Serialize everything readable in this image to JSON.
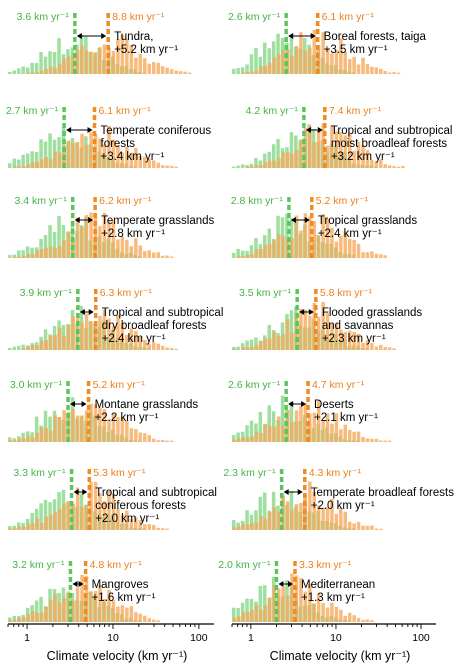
{
  "colors": {
    "green": "#5cc65c",
    "green_bar": "#7fd47f",
    "orange": "#f08a24",
    "orange_bar": "#f6a85a",
    "green_text": "#44b444",
    "orange_text": "#ee7f1a"
  },
  "chart_data": {
    "type": "bar",
    "xscale": "log",
    "xlim": [
      0.6,
      150
    ],
    "xticks": [
      {
        "value": 1,
        "label": "1"
      },
      {
        "value": 10,
        "label": "10"
      },
      {
        "value": 100,
        "label": "100"
      }
    ],
    "xlabel": "Climate velocity (km yr⁻¹)",
    "panels": [
      {
        "col": 0,
        "row": 0,
        "biome": "Tundra,",
        "delta": "+5.2 km yr⁻¹",
        "past": 3.6,
        "past_label": "3.6 km yr⁻¹",
        "future": 8.8,
        "future_label": "8.8 km yr⁻¹"
      },
      {
        "col": 1,
        "row": 0,
        "biome": "Boreal forests, taiga",
        "delta": "+3.5 km yr⁻¹",
        "past": 2.6,
        "past_label": "2.6 km yr⁻¹",
        "future": 6.1,
        "future_label": "6.1 km yr⁻¹"
      },
      {
        "col": 0,
        "row": 1,
        "biome": "Temperate coniferous forests",
        "delta": "+3.4 km yr⁻¹",
        "past": 2.7,
        "past_label": "2.7 km yr⁻¹",
        "future": 6.1,
        "future_label": "6.1 km yr⁻¹"
      },
      {
        "col": 1,
        "row": 1,
        "biome": "Tropical and subtropical moist broadleaf forests",
        "delta": "+3.2 km yr⁻¹",
        "past": 4.2,
        "past_label": "4.2 km yr⁻¹",
        "future": 7.4,
        "future_label": "7.4 km yr⁻¹"
      },
      {
        "col": 0,
        "row": 2,
        "biome": "Temperate grasslands",
        "delta": "+2.8 km yr⁻¹",
        "past": 3.4,
        "past_label": "3.4 km yr⁻¹",
        "future": 6.2,
        "future_label": "6.2 km yr⁻¹"
      },
      {
        "col": 1,
        "row": 2,
        "biome": "Tropical grasslands",
        "delta": "+2.4 km yr⁻¹",
        "past": 2.8,
        "past_label": "2.8 km yr⁻¹",
        "future": 5.2,
        "future_label": "5.2 km yr⁻¹"
      },
      {
        "col": 0,
        "row": 3,
        "biome": "Tropical and subtropical dry broadleaf forests",
        "delta": "+2.4 km yr⁻¹",
        "past": 3.9,
        "past_label": "3.9 km yr⁻¹",
        "future": 6.3,
        "future_label": "6.3 km yr⁻¹"
      },
      {
        "col": 1,
        "row": 3,
        "biome": "Flooded grasslands and savannas",
        "delta": "+2.3 km yr⁻¹",
        "past": 3.5,
        "past_label": "3.5 km yr⁻¹",
        "future": 5.8,
        "future_label": "5.8 km yr⁻¹"
      },
      {
        "col": 0,
        "row": 4,
        "biome": "Montane grasslands",
        "delta": "+2.2 km yr⁻¹",
        "past": 3.0,
        "past_label": "3.0 km yr⁻¹",
        "future": 5.2,
        "future_label": "5.2 km yr⁻¹"
      },
      {
        "col": 1,
        "row": 4,
        "biome": "Deserts",
        "delta": "+2.1 km yr⁻¹",
        "past": 2.6,
        "past_label": "2.6 km yr⁻¹",
        "future": 4.7,
        "future_label": "4.7 km yr⁻¹"
      },
      {
        "col": 0,
        "row": 5,
        "biome": "Tropical and subtropical coniferous forests",
        "delta": "+2.0 km yr⁻¹",
        "past": 3.3,
        "past_label": "3.3 km yr⁻¹",
        "future": 5.3,
        "future_label": "5.3 km yr⁻¹"
      },
      {
        "col": 1,
        "row": 5,
        "biome": "Temperate broadleaf forests",
        "delta": "+2.0 km yr⁻¹",
        "past": 2.3,
        "past_label": "2.3 km yr⁻¹",
        "future": 4.3,
        "future_label": "4.3 km yr⁻¹"
      },
      {
        "col": 0,
        "row": 6,
        "biome": "Mangroves",
        "delta": "+1.6 km yr⁻¹",
        "past": 3.2,
        "past_label": "3.2 km yr⁻¹",
        "future": 4.8,
        "future_label": "4.8 km yr⁻¹"
      },
      {
        "col": 1,
        "row": 6,
        "biome": "Mediterranean",
        "delta": "+1.3 km yr⁻¹",
        "past": 2.0,
        "past_label": "2.0 km yr⁻¹",
        "future": 3.3,
        "future_label": "3.3 km yr⁻¹"
      }
    ]
  }
}
